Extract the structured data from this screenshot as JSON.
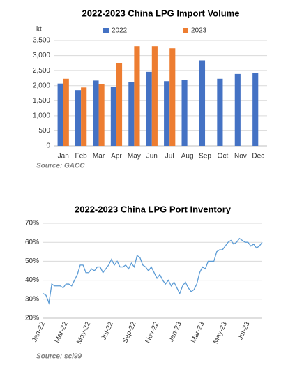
{
  "chart_data": [
    {
      "type": "bar",
      "title": "2022-2023  China LPG Import Volume",
      "y_label": "kt",
      "source": "Source: GACC",
      "categories": [
        "Jan",
        "Feb",
        "Mar",
        "Apr",
        "May",
        "Jun",
        "Jul",
        "Aug",
        "Sep",
        "Oct",
        "Nov",
        "Dec"
      ],
      "series": [
        {
          "name": "2022",
          "color": "#4472c4",
          "values": [
            2070,
            1850,
            2170,
            1960,
            2130,
            2460,
            2150,
            2180,
            2840,
            2230,
            2390,
            2430
          ]
        },
        {
          "name": "2023",
          "color": "#ed7d31",
          "values": [
            2230,
            1940,
            2060,
            2740,
            3310,
            3310,
            3240,
            null,
            null,
            null,
            null,
            null
          ]
        }
      ],
      "ylim": [
        0,
        3500
      ],
      "yticks": [
        0,
        500,
        {
          "value": 1000,
          "label": "1,000"
        },
        {
          "value": 1500,
          "label": "1,500"
        },
        {
          "value": 2000,
          "label": "2,000"
        },
        {
          "value": 2500,
          "label": "2,500"
        },
        {
          "value": 3000,
          "label": "3,000"
        },
        {
          "value": 3500,
          "label": "3,500"
        }
      ],
      "grid": true,
      "legend": "top"
    },
    {
      "type": "line",
      "title": "2022-2023  China LPG Port Inventory",
      "source": "Source: sci99",
      "categories": [
        "Jan-22",
        null,
        null,
        null,
        null,
        null,
        null,
        null,
        "Mar-22",
        null,
        null,
        null,
        null,
        null,
        null,
        null,
        "May-22",
        null,
        null,
        null,
        null,
        null,
        null,
        null,
        "Jul-22",
        null,
        null,
        null,
        null,
        null,
        null,
        null,
        "Sep-22",
        null,
        null,
        null,
        null,
        null,
        null,
        null,
        "Nov-22",
        null,
        null,
        null,
        null,
        null,
        null,
        null,
        "Jan-23",
        null,
        null,
        null,
        null,
        null,
        null,
        null,
        "Mar-23",
        null,
        null,
        null,
        null,
        null,
        null,
        null,
        "May-23",
        null,
        null,
        null,
        null,
        null,
        null,
        null,
        "Jul-23",
        null,
        null,
        null,
        null,
        null
      ],
      "values": [
        33,
        32,
        28,
        38,
        37,
        37,
        37,
        36,
        38,
        38,
        37,
        40,
        43,
        48,
        48,
        44,
        44,
        46,
        45,
        47,
        47,
        44,
        46,
        48,
        51,
        48,
        50,
        47,
        47,
        48,
        46,
        49,
        47,
        53,
        52,
        48,
        47,
        45,
        47,
        44,
        41,
        43,
        40,
        38,
        40,
        37,
        39,
        36,
        33,
        37,
        39,
        36,
        34,
        35,
        38,
        44,
        47,
        46,
        50,
        50,
        50,
        55,
        56,
        56,
        58,
        60,
        61,
        59,
        60,
        62,
        61,
        60,
        60,
        58,
        59,
        57,
        58,
        60
      ],
      "color": "#5b9bd5",
      "ylim": [
        20,
        70
      ],
      "yticks": [
        {
          "value": 20,
          "label": "20%"
        },
        {
          "value": 30,
          "label": "30%"
        },
        {
          "value": 40,
          "label": "40%"
        },
        {
          "value": 50,
          "label": "50%"
        },
        {
          "value": 60,
          "label": "60%"
        },
        {
          "value": 70,
          "label": "70%"
        }
      ],
      "grid": true
    }
  ]
}
